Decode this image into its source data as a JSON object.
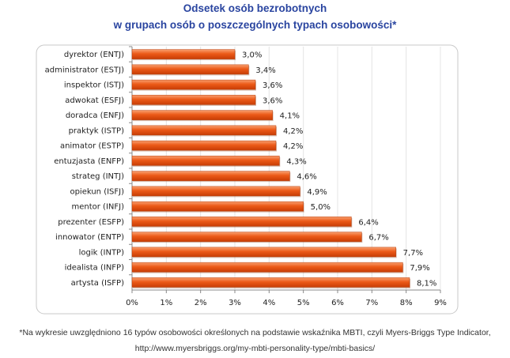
{
  "chart_data": {
    "type": "bar",
    "orientation": "horizontal",
    "title": "Odsetek osób bezrobotnych",
    "subtitle": "w grupach osób o poszczególnych typach osobowości*",
    "categories": [
      "dyrektor (ENTJ)",
      "administrator (ESTJ)",
      "inspektor (ISTJ)",
      "adwokat (ESFJ)",
      "doradca (ENFJ)",
      "praktyk (ISTP)",
      "animator (ESTP)",
      "entuzjasta (ENFP)",
      "strateg (INTJ)",
      "opiekun (ISFJ)",
      "mentor (INFJ)",
      "prezenter (ESFP)",
      "innowator (ENTP)",
      "logik (INTP)",
      "idealista (INFP)",
      "artysta (ISFP)"
    ],
    "values": [
      3.0,
      3.4,
      3.6,
      3.6,
      4.1,
      4.2,
      4.2,
      4.3,
      4.6,
      4.9,
      5.0,
      6.4,
      6.7,
      7.7,
      7.9,
      8.1
    ],
    "data_labels": [
      "3,0%",
      "3,4%",
      "3,6%",
      "3,6%",
      "4,1%",
      "4,2%",
      "4,2%",
      "4,3%",
      "4,6%",
      "4,9%",
      "5,0%",
      "6,4%",
      "6,7%",
      "7,7%",
      "7,9%",
      "8,1%"
    ],
    "x_ticks": [
      "0%",
      "1%",
      "2%",
      "3%",
      "4%",
      "5%",
      "6%",
      "7%",
      "8%",
      "9%"
    ],
    "xlim": [
      0,
      9
    ],
    "grid": true,
    "bar_color": "#e8500f",
    "title_color": "#2a45a0"
  },
  "footnote": {
    "line1": "*Na wykresie uwzględniono 16 typów osobowości określonych na podstawie wskaźnika MBTI, czyli Myers-Briggs Type Indicator,",
    "line2": "http://www.myersbriggs.org/my-mbti-personality-type/mbti-basics/"
  }
}
